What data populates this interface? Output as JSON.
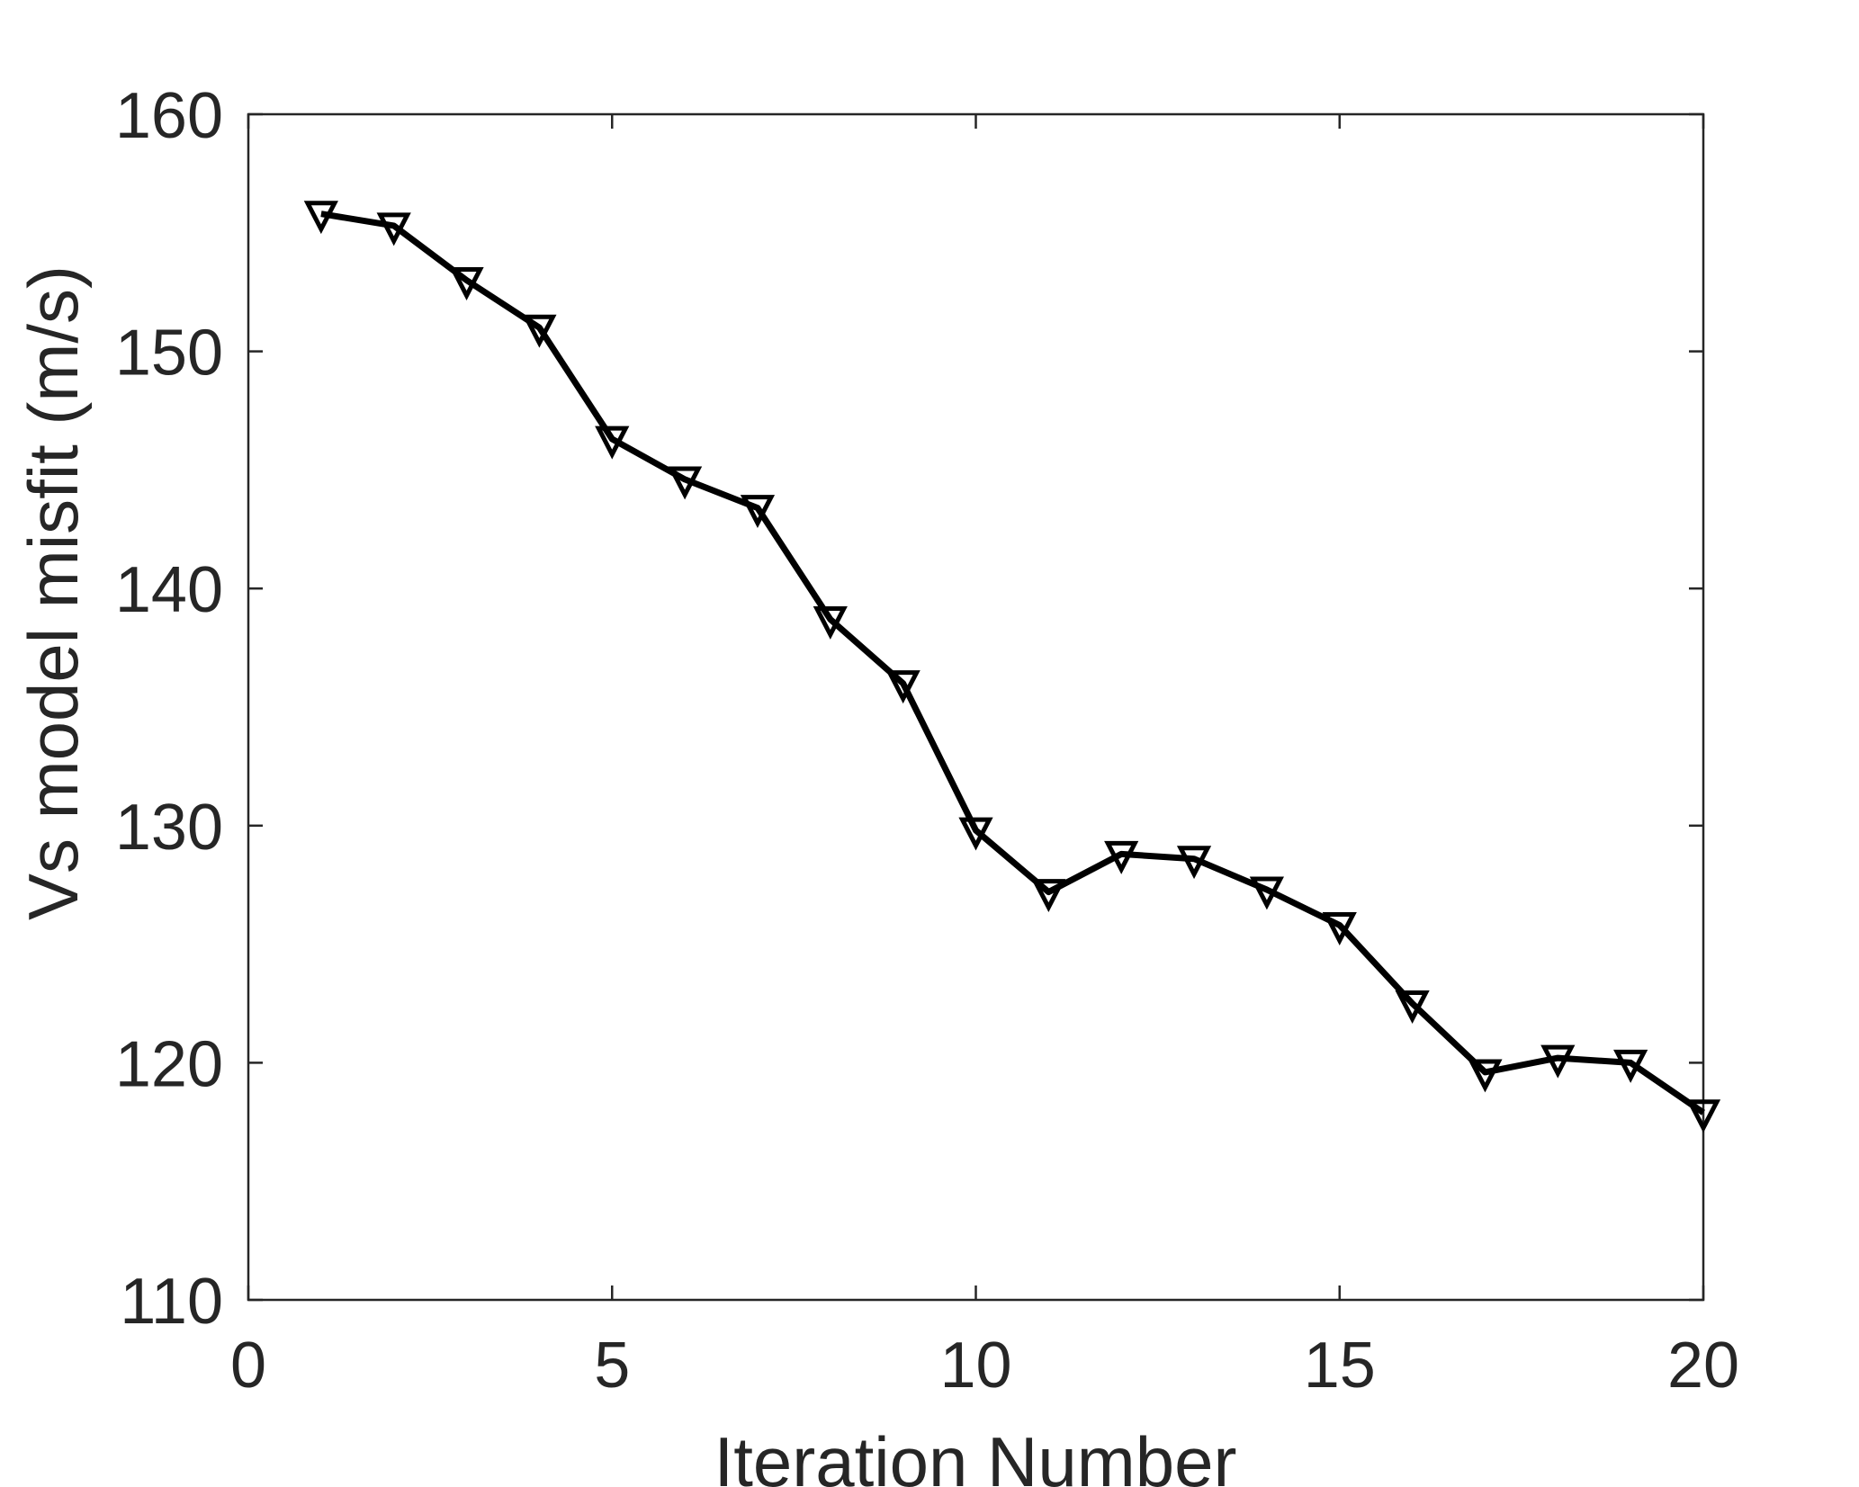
{
  "chart_data": {
    "type": "line",
    "title": "",
    "xlabel": "Iteration Number",
    "ylabel": "Vs model misfit (m/s)",
    "xlim": [
      0,
      20
    ],
    "ylim": [
      110,
      160
    ],
    "xticks": [
      0,
      5,
      10,
      15,
      20
    ],
    "yticks": [
      110,
      120,
      130,
      140,
      150,
      160
    ],
    "grid": false,
    "marker": "downward-triangle",
    "line_color": "#000000",
    "series": [
      {
        "x": [
          1,
          2,
          3,
          4,
          5,
          6,
          7,
          8,
          9,
          10,
          11,
          12,
          13,
          14,
          15,
          16,
          17,
          18,
          19,
          20
        ],
        "values": [
          155.8,
          155.3,
          153.0,
          151.0,
          146.3,
          144.6,
          143.4,
          138.7,
          136.0,
          129.8,
          127.2,
          128.8,
          128.6,
          127.3,
          125.8,
          122.5,
          119.6,
          120.2,
          120.0,
          117.9
        ]
      }
    ]
  }
}
